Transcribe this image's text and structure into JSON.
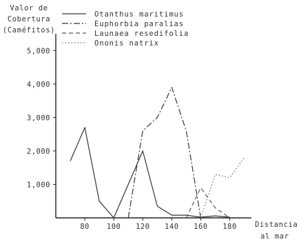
{
  "chart_data": {
    "type": "line",
    "title": "",
    "ylabel_lines": [
      "Valor de",
      "Cobertura",
      "(Caméfitos)"
    ],
    "xlabel_lines": [
      "Distancia",
      "al mar"
    ],
    "x_ticks": [
      80,
      100,
      120,
      140,
      160,
      180
    ],
    "x_tick_labels": [
      "80",
      "100",
      "120",
      "140",
      "160",
      "180"
    ],
    "y_ticks": [
      1000,
      2000,
      3000,
      4000,
      5000
    ],
    "y_tick_labels": [
      "1,000",
      "2,000",
      "3,000",
      "4,000",
      "5,000"
    ],
    "xlim": [
      60,
      195
    ],
    "ylim": [
      0,
      5500
    ],
    "legend_position": "top",
    "series": [
      {
        "name": "Otanthus maritimus",
        "style": "solid",
        "x": [
          70,
          80,
          90,
          100,
          120,
          130,
          140,
          150,
          160,
          170,
          180
        ],
        "y": [
          1700,
          2700,
          500,
          0,
          2000,
          350,
          80,
          80,
          20,
          60,
          20
        ]
      },
      {
        "name": "Euphorbia paralias",
        "style": "dash-dot",
        "x": [
          110,
          120,
          130,
          140,
          150,
          160
        ],
        "y": [
          0,
          2600,
          3000,
          3900,
          2600,
          0
        ]
      },
      {
        "name": "Launaea resedifolia",
        "style": "dashed",
        "x": [
          150,
          160,
          170,
          180
        ],
        "y": [
          0,
          900,
          300,
          0
        ]
      },
      {
        "name": "Ononis natrix",
        "style": "dotted",
        "x": [
          160,
          170,
          180,
          190
        ],
        "y": [
          0,
          1300,
          1200,
          1800
        ]
      }
    ]
  }
}
